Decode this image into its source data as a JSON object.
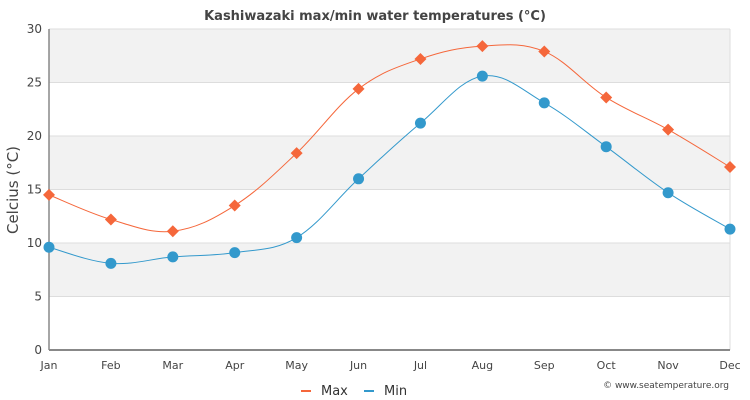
{
  "chart_data": {
    "type": "line",
    "title": "Kashiwazaki max/min water temperatures (°C)",
    "xlabel": "",
    "ylabel": "Celcius (°C)",
    "categories": [
      "Jan",
      "Feb",
      "Mar",
      "Apr",
      "May",
      "Jun",
      "Jul",
      "Aug",
      "Sep",
      "Oct",
      "Nov",
      "Dec"
    ],
    "ylim": [
      0,
      30
    ],
    "yticks": [
      0,
      5,
      10,
      15,
      20,
      25,
      30
    ],
    "grid": true,
    "legend_position": "bottom-center",
    "series": [
      {
        "name": "Max",
        "color": "#f5673b",
        "marker": "diamond",
        "values": [
          14.5,
          12.2,
          11.1,
          13.5,
          18.4,
          24.4,
          27.2,
          28.4,
          27.9,
          23.6,
          20.6,
          17.1
        ]
      },
      {
        "name": "Min",
        "color": "#3399cc",
        "marker": "circle",
        "values": [
          9.6,
          8.1,
          8.7,
          9.1,
          10.5,
          16.0,
          21.2,
          25.6,
          23.1,
          19.0,
          14.7,
          11.3
        ]
      }
    ],
    "credit": "© www.seatemperature.org"
  }
}
